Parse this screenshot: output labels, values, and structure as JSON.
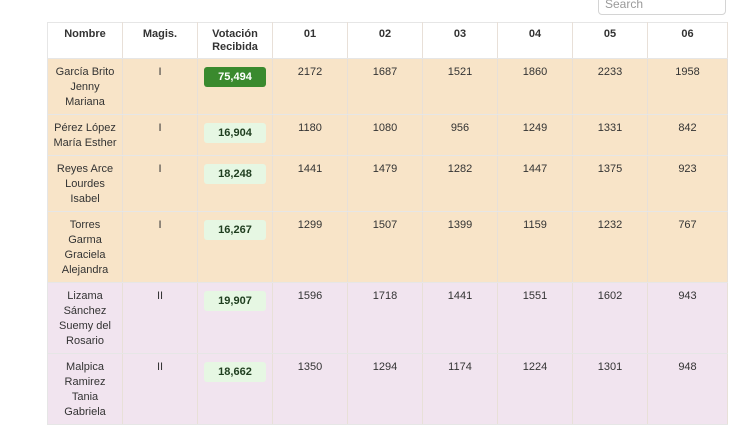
{
  "search": {
    "placeholder": "Search"
  },
  "table": {
    "headers": {
      "nombre": "Nombre",
      "magis": "Magis.",
      "votacion": "Votación Recibida",
      "d01": "01",
      "d02": "02",
      "d03": "03",
      "d04": "04",
      "d05": "05",
      "d06": "06"
    },
    "rows": [
      {
        "nombre": "García Brito Jenny Mariana",
        "magis": "I",
        "votacion": "75,494",
        "top": true,
        "d01": "2172",
        "d02": "1687",
        "d03": "1521",
        "d04": "1860",
        "d05": "2233",
        "d06": "1958"
      },
      {
        "nombre": "Pérez López María Esther",
        "magis": "I",
        "votacion": "16,904",
        "top": false,
        "d01": "1180",
        "d02": "1080",
        "d03": "956",
        "d04": "1249",
        "d05": "1331",
        "d06": "842"
      },
      {
        "nombre": "Reyes Arce Lourdes Isabel",
        "magis": "I",
        "votacion": "18,248",
        "top": false,
        "d01": "1441",
        "d02": "1479",
        "d03": "1282",
        "d04": "1447",
        "d05": "1375",
        "d06": "923"
      },
      {
        "nombre": "Torres Garma Graciela Alejandra",
        "magis": "I",
        "votacion": "16,267",
        "top": false,
        "d01": "1299",
        "d02": "1507",
        "d03": "1399",
        "d04": "1159",
        "d05": "1232",
        "d06": "767"
      },
      {
        "nombre": "Lizama Sánchez Suemy del Rosario",
        "magis": "II",
        "votacion": "19,907",
        "top": false,
        "d01": "1596",
        "d02": "1718",
        "d03": "1441",
        "d04": "1551",
        "d05": "1602",
        "d06": "943"
      },
      {
        "nombre": "Malpica Ramirez Tania Gabriela",
        "magis": "II",
        "votacion": "18,662",
        "top": false,
        "d01": "1350",
        "d02": "1294",
        "d03": "1174",
        "d04": "1224",
        "d05": "1301",
        "d06": "948"
      }
    ],
    "colors": {
      "group_I": "#f8e4c8",
      "group_II": "#f1e4ef",
      "top_badge": "#3a8a2e",
      "badge": "#e6f7e3"
    }
  }
}
